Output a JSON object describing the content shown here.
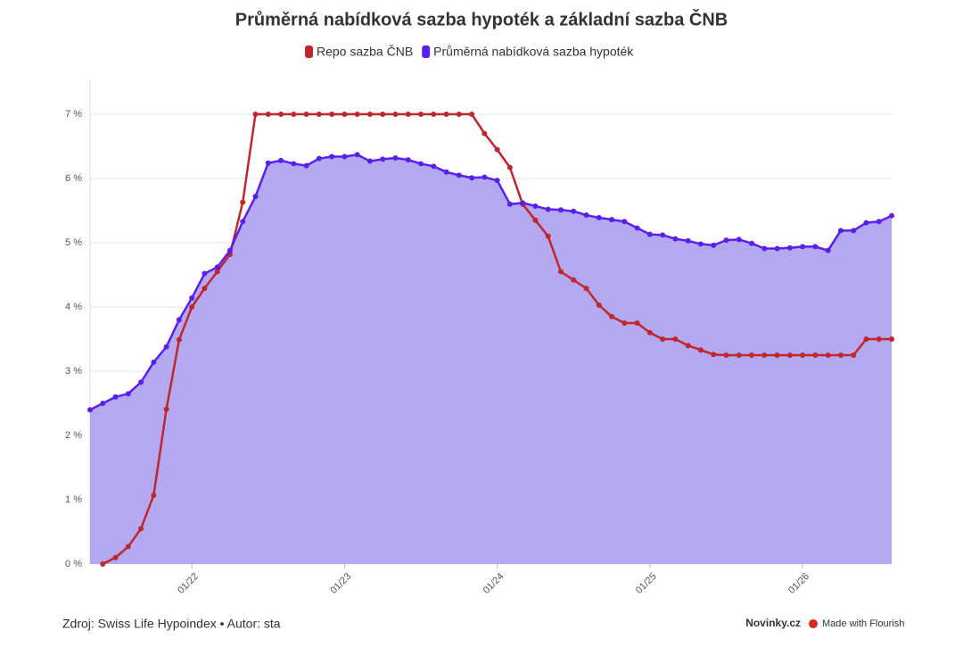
{
  "chart_data": {
    "type": "line",
    "title": "Průměrná nabídková sazba hypoték a základní sazba ČNB",
    "x": [
      "05/21",
      "06/21",
      "07/21",
      "08/21",
      "09/21",
      "10/21",
      "11/21",
      "12/21",
      "01/22",
      "02/22",
      "03/22",
      "04/22",
      "05/22",
      "06/22",
      "07/22",
      "08/22",
      "09/22",
      "10/22",
      "11/22",
      "12/22",
      "01/23",
      "02/23",
      "03/23",
      "04/23",
      "05/23",
      "06/23",
      "07/23",
      "08/23",
      "09/23",
      "10/23",
      "11/23",
      "12/23",
      "01/24",
      "02/24",
      "03/24",
      "04/24",
      "05/24",
      "06/24",
      "07/24",
      "08/24",
      "09/24",
      "10/24",
      "11/24",
      "12/24",
      "01/25",
      "02/25",
      "03/25",
      "04/25",
      "05/25",
      "06/25",
      "07/25",
      "08/25",
      "09/25",
      "10/25",
      "11/25",
      "12/25",
      "01/26",
      "02/26",
      "03/26",
      "04/26",
      "05/26",
      "06/26",
      "07/26",
      "08/26"
    ],
    "xticks": [
      "01/22",
      "01/23",
      "01/24",
      "01/25",
      "01/26"
    ],
    "series": [
      {
        "name": "Repo sazba ČNB",
        "color": "#c0272d",
        "area": false,
        "values": [
          null,
          0,
          0.1,
          0.27,
          0.55,
          1.07,
          2.41,
          3.49,
          4.0,
          4.29,
          4.55,
          4.82,
          5.63,
          7.0,
          7.0,
          7.0,
          7.0,
          7.0,
          7.0,
          7.0,
          7.0,
          7.0,
          7.0,
          7.0,
          7.0,
          7.0,
          7.0,
          7.0,
          7.0,
          7.0,
          7.0,
          6.7,
          6.45,
          6.17,
          5.6,
          5.35,
          5.1,
          4.55,
          4.42,
          4.29,
          4.03,
          3.85,
          3.75,
          3.75,
          3.6,
          3.5,
          3.5,
          3.4,
          3.33,
          3.26,
          3.25,
          3.25,
          3.25,
          3.25,
          3.25,
          3.25,
          3.25,
          3.25,
          3.25,
          3.25,
          3.25,
          3.5,
          3.5,
          3.5
        ]
      },
      {
        "name": "Průměrná nabídková sazba hypoték",
        "color": "#5a1ff0",
        "area": true,
        "area_color": "#b4a8f1",
        "values": [
          2.4,
          2.5,
          2.6,
          2.65,
          2.83,
          3.14,
          3.38,
          3.8,
          4.14,
          4.52,
          4.62,
          4.88,
          5.33,
          5.72,
          6.24,
          6.28,
          6.23,
          6.2,
          6.31,
          6.34,
          6.34,
          6.37,
          6.27,
          6.3,
          6.32,
          6.29,
          6.23,
          6.19,
          6.1,
          6.05,
          6.01,
          6.02,
          5.97,
          5.6,
          5.62,
          5.57,
          5.52,
          5.51,
          5.49,
          5.43,
          5.39,
          5.36,
          5.33,
          5.23,
          5.13,
          5.12,
          5.06,
          5.03,
          4.98,
          4.96,
          5.04,
          5.05,
          4.99,
          4.91,
          4.91,
          4.92,
          4.94,
          4.94,
          4.88,
          5.19,
          5.19,
          5.31,
          5.33,
          5.42
        ]
      }
    ],
    "ylim": [
      0,
      7.5
    ],
    "yticks": [
      {
        "value": 0,
        "label": "0 %"
      },
      {
        "value": 1,
        "label": "1 %"
      },
      {
        "value": 2,
        "label": "2 %"
      },
      {
        "value": 3,
        "label": "3 %"
      },
      {
        "value": 4,
        "label": "4 %"
      },
      {
        "value": 5,
        "label": "5 %"
      },
      {
        "value": 6,
        "label": "6 %"
      },
      {
        "value": 7,
        "label": "7 %"
      }
    ],
    "grid": true,
    "legend": "top"
  },
  "footer": {
    "source": "Zdroj: Swiss Life Hypoindex • Autor: sta",
    "brand": "Novinky.cz",
    "credit": "Made with Flourish"
  }
}
